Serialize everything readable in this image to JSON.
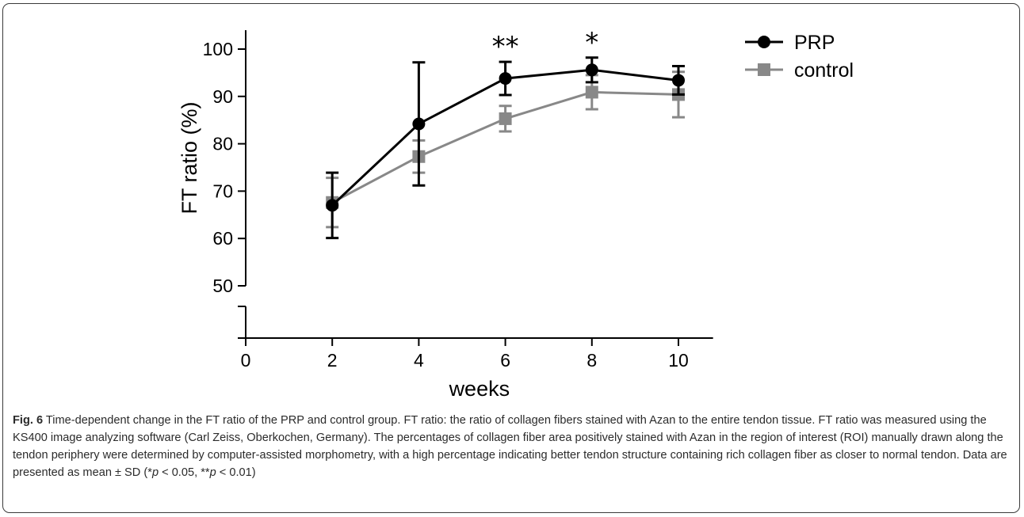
{
  "chart_data": {
    "type": "line",
    "xlabel": "weeks",
    "ylabel": "FT ratio (%)",
    "x_ticks": [
      0,
      2,
      4,
      6,
      8,
      10
    ],
    "y_ticks": [
      50,
      60,
      70,
      80,
      90,
      100
    ],
    "xlim": [
      0,
      10.8
    ],
    "ylim": [
      50,
      104
    ],
    "axis_break": "y below 50",
    "legend_position": "top-right",
    "series": [
      {
        "name": "PRP",
        "marker": "circle",
        "color": "#000000",
        "x": [
          2,
          4,
          6,
          8,
          10
        ],
        "y": [
          67.0,
          84.2,
          93.8,
          95.6,
          93.4
        ],
        "sd": [
          6.9,
          13.0,
          3.5,
          2.6,
          3.0
        ]
      },
      {
        "name": "control",
        "marker": "square",
        "color": "#888888",
        "x": [
          2,
          4,
          6,
          8,
          10
        ],
        "y": [
          67.6,
          77.3,
          85.3,
          90.9,
          90.4
        ],
        "sd": [
          5.2,
          3.4,
          2.7,
          3.6,
          4.8
        ]
      }
    ],
    "significance": [
      {
        "x": 6,
        "label": "**"
      },
      {
        "x": 8,
        "label": "*"
      }
    ]
  },
  "caption": {
    "fig_label": "Fig. 6",
    "text_before_p1": " Time-dependent change in the FT ratio of the PRP and control group. FT ratio: the ratio of collagen fibers stained with Azan to the entire tendon tissue. FT ratio was measured using the KS400 image analyzing software (Carl Zeiss, Oberkochen, Germany). The percentages of collagen fiber area positively stained with Azan in the region of interest (ROI) manually drawn along the tendon periphery were determined by computer-assisted morphometry, with a high percentage indicating better tendon structure containing rich collagen fiber as closer to normal tendon. Data are presented as mean ± SD (*",
    "p_symbol": "p",
    "text_between": " < 0.05, **",
    "text_after_p2": " < 0.01)"
  }
}
